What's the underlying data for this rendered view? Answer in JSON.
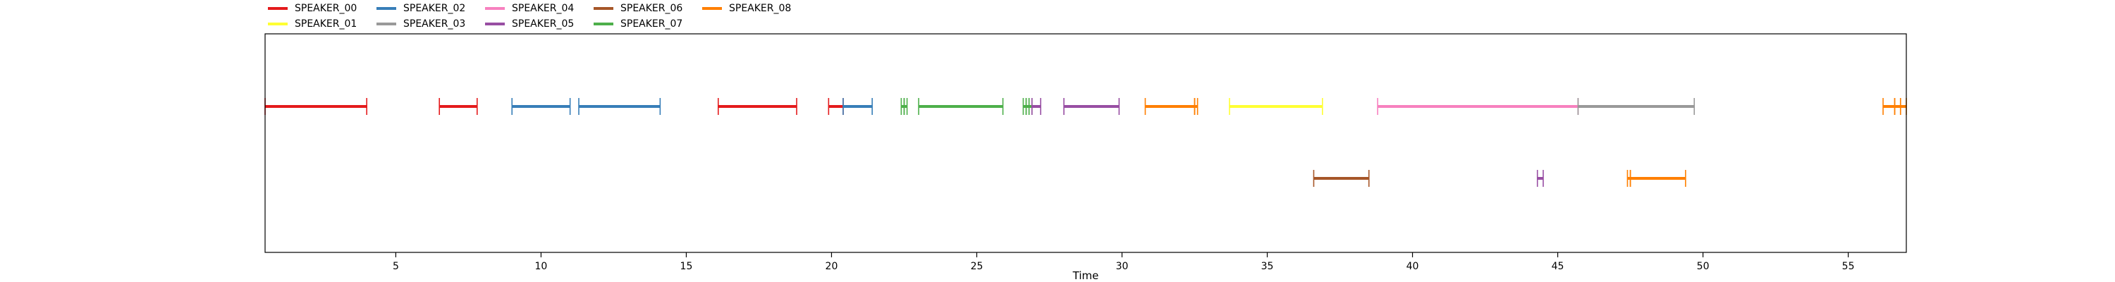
{
  "chart_data": {
    "type": "timeline",
    "xlabel": "Time",
    "ylabel": "",
    "title": "",
    "xlim": [
      0.5,
      57.0
    ],
    "xticks": [
      5,
      10,
      15,
      20,
      25,
      30,
      35,
      40,
      45,
      50,
      55
    ],
    "grid": false,
    "legend_position": "top-left",
    "series": [
      {
        "name": "SPEAKER_00",
        "color": "#e41a1c"
      },
      {
        "name": "SPEAKER_01",
        "color": "#ffff33"
      },
      {
        "name": "SPEAKER_02",
        "color": "#377eb8"
      },
      {
        "name": "SPEAKER_03",
        "color": "#999999"
      },
      {
        "name": "SPEAKER_04",
        "color": "#f781bf"
      },
      {
        "name": "SPEAKER_05",
        "color": "#984ea3"
      },
      {
        "name": "SPEAKER_06",
        "color": "#a65628"
      },
      {
        "name": "SPEAKER_07",
        "color": "#4daf4a"
      },
      {
        "name": "SPEAKER_08",
        "color": "#ff7f00"
      }
    ],
    "segments": [
      {
        "speaker": "SPEAKER_00",
        "start": 0.5,
        "end": 4.0,
        "track": 1
      },
      {
        "speaker": "SPEAKER_00",
        "start": 6.5,
        "end": 7.8,
        "track": 1
      },
      {
        "speaker": "SPEAKER_02",
        "start": 9.0,
        "end": 11.0,
        "track": 1
      },
      {
        "speaker": "SPEAKER_02",
        "start": 11.3,
        "end": 14.1,
        "track": 1
      },
      {
        "speaker": "SPEAKER_00",
        "start": 16.1,
        "end": 18.8,
        "track": 1
      },
      {
        "speaker": "SPEAKER_00",
        "start": 19.9,
        "end": 20.4,
        "track": 1
      },
      {
        "speaker": "SPEAKER_02",
        "start": 20.4,
        "end": 21.4,
        "track": 1
      },
      {
        "speaker": "SPEAKER_07",
        "start": 22.4,
        "end": 22.5,
        "track": 1
      },
      {
        "speaker": "SPEAKER_07",
        "start": 22.5,
        "end": 22.6,
        "track": 1
      },
      {
        "speaker": "SPEAKER_07",
        "start": 23.0,
        "end": 25.9,
        "track": 1
      },
      {
        "speaker": "SPEAKER_07",
        "start": 26.6,
        "end": 26.7,
        "track": 1
      },
      {
        "speaker": "SPEAKER_07",
        "start": 26.7,
        "end": 26.8,
        "track": 1
      },
      {
        "speaker": "SPEAKER_07",
        "start": 26.8,
        "end": 26.9,
        "track": 1
      },
      {
        "speaker": "SPEAKER_05",
        "start": 26.9,
        "end": 27.2,
        "track": 1
      },
      {
        "speaker": "SPEAKER_05",
        "start": 28.0,
        "end": 29.9,
        "track": 1
      },
      {
        "speaker": "SPEAKER_08",
        "start": 30.8,
        "end": 32.5,
        "track": 1
      },
      {
        "speaker": "SPEAKER_08",
        "start": 32.5,
        "end": 32.6,
        "track": 1
      },
      {
        "speaker": "SPEAKER_01",
        "start": 33.7,
        "end": 36.9,
        "track": 1
      },
      {
        "speaker": "SPEAKER_04",
        "start": 38.8,
        "end": 45.7,
        "track": 1
      },
      {
        "speaker": "SPEAKER_03",
        "start": 45.7,
        "end": 49.7,
        "track": 1
      },
      {
        "speaker": "SPEAKER_08",
        "start": 56.2,
        "end": 56.6,
        "track": 1
      },
      {
        "speaker": "SPEAKER_08",
        "start": 56.6,
        "end": 56.8,
        "track": 1
      },
      {
        "speaker": "SPEAKER_08",
        "start": 56.8,
        "end": 57.0,
        "track": 1
      },
      {
        "speaker": "SPEAKER_06",
        "start": 36.6,
        "end": 38.5,
        "track": 2
      },
      {
        "speaker": "SPEAKER_05",
        "start": 44.3,
        "end": 44.5,
        "track": 2
      },
      {
        "speaker": "SPEAKER_08",
        "start": 47.4,
        "end": 47.5,
        "track": 2
      },
      {
        "speaker": "SPEAKER_08",
        "start": 47.5,
        "end": 49.4,
        "track": 2
      }
    ]
  }
}
